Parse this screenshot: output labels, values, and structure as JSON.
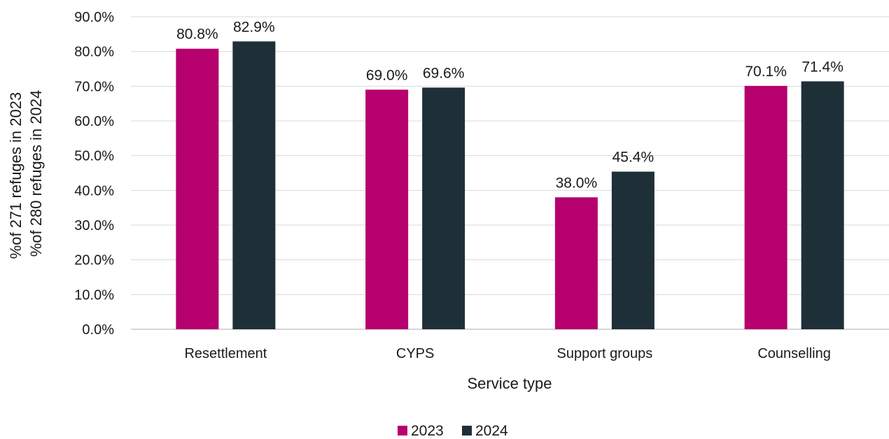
{
  "chart_data": {
    "type": "bar",
    "categories": [
      "Resettlement",
      "CYPS",
      "Support groups",
      "Counselling"
    ],
    "series": [
      {
        "name": "2023",
        "color": "#b5006e",
        "values": [
          80.8,
          69.0,
          38.0,
          70.1
        ],
        "labels": [
          "80.8%",
          "69.0%",
          "38.0%",
          "70.1%"
        ]
      },
      {
        "name": "2024",
        "color": "#1e2f38",
        "values": [
          82.9,
          69.6,
          45.4,
          71.4
        ],
        "labels": [
          "82.9%",
          "69.6%",
          "45.4%",
          "71.4%"
        ]
      }
    ],
    "xlabel": "Service type",
    "ylabel_lines": [
      "%of 271 refuges in 2023",
      "%of 280 refuges in 2024"
    ],
    "ylim": [
      0,
      90
    ],
    "yticks": [
      0,
      10,
      20,
      30,
      40,
      50,
      60,
      70,
      80,
      90
    ],
    "ytick_labels": [
      "0.0%",
      "10.0%",
      "20.0%",
      "30.0%",
      "40.0%",
      "50.0%",
      "60.0%",
      "70.0%",
      "80.0%",
      "90.0%"
    ],
    "grid": true,
    "legend_position": "bottom-center"
  }
}
